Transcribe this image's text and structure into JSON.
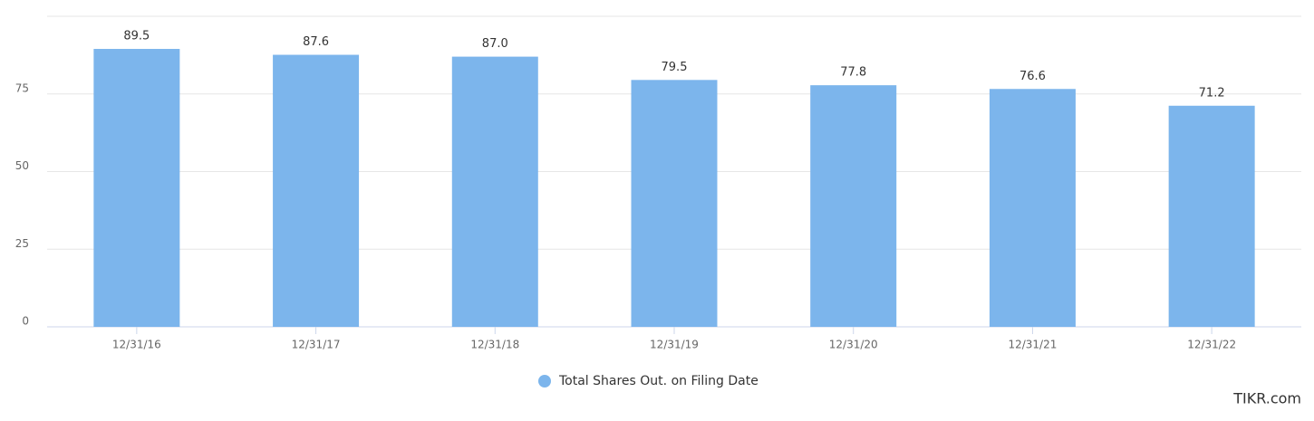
{
  "chart_data": {
    "type": "bar",
    "categories": [
      "12/31/16",
      "12/31/17",
      "12/31/18",
      "12/31/19",
      "12/31/20",
      "12/31/21",
      "12/31/22"
    ],
    "series": [
      {
        "name": "Total Shares Out. on Filing Date",
        "color": "#7cb5ec",
        "values": [
          89.5,
          87.6,
          87.0,
          79.5,
          77.8,
          76.6,
          71.2
        ],
        "value_labels": [
          "89.5",
          "87.6",
          "87.0",
          "79.5",
          "77.8",
          "76.6",
          "71.2"
        ]
      }
    ],
    "ylim": [
      0,
      100
    ],
    "yticks": [
      0,
      25,
      50,
      75
    ],
    "grid": true,
    "legend": "bottom",
    "watermark": "TIKR.com"
  }
}
